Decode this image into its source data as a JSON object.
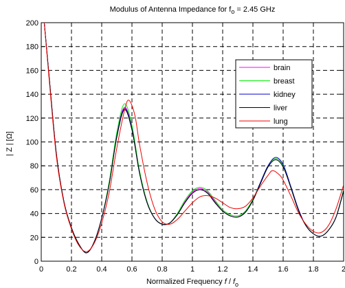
{
  "chart_data": {
    "type": "line",
    "title_main": "Modulus of Antenna Impedance for f",
    "title_sub": "o",
    "title_tail": " = 2.45 GHz",
    "xlabel_main": "Normalized Frequency ",
    "xlabel_f": "f",
    "xlabel_slash": " / ",
    "xlabel_f2": "f",
    "xlabel_sub": "o",
    "ylabel": "| Z | [Ω]",
    "xlim": [
      0,
      2
    ],
    "ylim": [
      0,
      200
    ],
    "x_ticks": [
      "0",
      "0.2",
      "0.4",
      "0.6",
      "0.8",
      "1",
      "1.2",
      "1.4",
      "1.6",
      "1.8",
      "2"
    ],
    "y_ticks": [
      "0",
      "20",
      "40",
      "60",
      "80",
      "100",
      "120",
      "140",
      "160",
      "180",
      "200"
    ],
    "grid": true,
    "legend_position": "top-right",
    "series": [
      {
        "name": "brain",
        "color": "#ff00ff",
        "points": [
          [
            0.02,
            200
          ],
          [
            0.05,
            158
          ],
          [
            0.1,
            90
          ],
          [
            0.15,
            50
          ],
          [
            0.2,
            28
          ],
          [
            0.25,
            14
          ],
          [
            0.3,
            7
          ],
          [
            0.35,
            16
          ],
          [
            0.4,
            36
          ],
          [
            0.45,
            66
          ],
          [
            0.5,
            106
          ],
          [
            0.55,
            129
          ],
          [
            0.6,
            112
          ],
          [
            0.65,
            75
          ],
          [
            0.7,
            50
          ],
          [
            0.75,
            36
          ],
          [
            0.8,
            31
          ],
          [
            0.85,
            32
          ],
          [
            0.9,
            40
          ],
          [
            0.95,
            50
          ],
          [
            1.0,
            58
          ],
          [
            1.05,
            61
          ],
          [
            1.1,
            58
          ],
          [
            1.15,
            50
          ],
          [
            1.2,
            43
          ],
          [
            1.25,
            39
          ],
          [
            1.3,
            38
          ],
          [
            1.35,
            42
          ],
          [
            1.4,
            52
          ],
          [
            1.45,
            66
          ],
          [
            1.5,
            80
          ],
          [
            1.55,
            86
          ],
          [
            1.6,
            80
          ],
          [
            1.65,
            62
          ],
          [
            1.7,
            43
          ],
          [
            1.75,
            30
          ],
          [
            1.8,
            23
          ],
          [
            1.85,
            21
          ],
          [
            1.9,
            26
          ],
          [
            1.95,
            37
          ],
          [
            2.0,
            60
          ]
        ]
      },
      {
        "name": "breast",
        "color": "#00ee00",
        "points": [
          [
            0.02,
            200
          ],
          [
            0.05,
            158
          ],
          [
            0.1,
            90
          ],
          [
            0.15,
            50
          ],
          [
            0.2,
            28
          ],
          [
            0.25,
            14
          ],
          [
            0.3,
            7
          ],
          [
            0.35,
            16
          ],
          [
            0.4,
            36
          ],
          [
            0.45,
            67
          ],
          [
            0.5,
            108
          ],
          [
            0.55,
            132
          ],
          [
            0.6,
            114
          ],
          [
            0.65,
            76
          ],
          [
            0.7,
            50
          ],
          [
            0.75,
            36
          ],
          [
            0.8,
            31
          ],
          [
            0.85,
            32
          ],
          [
            0.9,
            40
          ],
          [
            0.95,
            51
          ],
          [
            1.0,
            59
          ],
          [
            1.05,
            62
          ],
          [
            1.1,
            59
          ],
          [
            1.15,
            51
          ],
          [
            1.2,
            43
          ],
          [
            1.25,
            39
          ],
          [
            1.3,
            38
          ],
          [
            1.35,
            42
          ],
          [
            1.4,
            52
          ],
          [
            1.45,
            66
          ],
          [
            1.5,
            80
          ],
          [
            1.55,
            86
          ],
          [
            1.6,
            80
          ],
          [
            1.65,
            62
          ],
          [
            1.7,
            43
          ],
          [
            1.75,
            30
          ],
          [
            1.8,
            23
          ],
          [
            1.85,
            21
          ],
          [
            1.9,
            26
          ],
          [
            1.95,
            37
          ],
          [
            2.0,
            60
          ]
        ]
      },
      {
        "name": "kidney",
        "color": "#0000cc",
        "points": [
          [
            0.02,
            200
          ],
          [
            0.05,
            158
          ],
          [
            0.1,
            90
          ],
          [
            0.15,
            50
          ],
          [
            0.2,
            28
          ],
          [
            0.25,
            14
          ],
          [
            0.3,
            7
          ],
          [
            0.35,
            16
          ],
          [
            0.4,
            36
          ],
          [
            0.45,
            65
          ],
          [
            0.5,
            105
          ],
          [
            0.55,
            128
          ],
          [
            0.6,
            111
          ],
          [
            0.65,
            74
          ],
          [
            0.7,
            49
          ],
          [
            0.75,
            36
          ],
          [
            0.8,
            31
          ],
          [
            0.85,
            32
          ],
          [
            0.9,
            39
          ],
          [
            0.95,
            49
          ],
          [
            1.0,
            57
          ],
          [
            1.05,
            60
          ],
          [
            1.1,
            57
          ],
          [
            1.15,
            49
          ],
          [
            1.2,
            42
          ],
          [
            1.25,
            38
          ],
          [
            1.3,
            37
          ],
          [
            1.35,
            41
          ],
          [
            1.4,
            51
          ],
          [
            1.45,
            66
          ],
          [
            1.5,
            80
          ],
          [
            1.55,
            87
          ],
          [
            1.6,
            81
          ],
          [
            1.65,
            63
          ],
          [
            1.7,
            44
          ],
          [
            1.75,
            30
          ],
          [
            1.8,
            23
          ],
          [
            1.85,
            21
          ],
          [
            1.9,
            26
          ],
          [
            1.95,
            37
          ],
          [
            2.0,
            59
          ]
        ]
      },
      {
        "name": "liver",
        "color": "#000000",
        "points": [
          [
            0.02,
            200
          ],
          [
            0.05,
            158
          ],
          [
            0.1,
            90
          ],
          [
            0.15,
            50
          ],
          [
            0.2,
            28
          ],
          [
            0.25,
            14
          ],
          [
            0.3,
            7
          ],
          [
            0.35,
            16
          ],
          [
            0.4,
            36
          ],
          [
            0.45,
            65
          ],
          [
            0.5,
            104
          ],
          [
            0.55,
            127
          ],
          [
            0.6,
            110
          ],
          [
            0.65,
            74
          ],
          [
            0.7,
            49
          ],
          [
            0.75,
            36
          ],
          [
            0.8,
            31
          ],
          [
            0.85,
            32
          ],
          [
            0.9,
            39
          ],
          [
            0.95,
            49
          ],
          [
            1.0,
            57
          ],
          [
            1.05,
            60
          ],
          [
            1.1,
            57
          ],
          [
            1.15,
            49
          ],
          [
            1.2,
            42
          ],
          [
            1.25,
            38
          ],
          [
            1.3,
            37
          ],
          [
            1.35,
            41
          ],
          [
            1.4,
            51
          ],
          [
            1.45,
            65
          ],
          [
            1.5,
            79
          ],
          [
            1.55,
            85
          ],
          [
            1.6,
            79
          ],
          [
            1.65,
            62
          ],
          [
            1.7,
            43
          ],
          [
            1.75,
            30
          ],
          [
            1.8,
            23
          ],
          [
            1.85,
            21
          ],
          [
            1.9,
            26
          ],
          [
            1.95,
            37
          ],
          [
            2.0,
            59
          ]
        ]
      },
      {
        "name": "lung",
        "color": "#ee0000",
        "points": [
          [
            0.02,
            200
          ],
          [
            0.05,
            156
          ],
          [
            0.1,
            88
          ],
          [
            0.15,
            49
          ],
          [
            0.2,
            27
          ],
          [
            0.25,
            13
          ],
          [
            0.3,
            8
          ],
          [
            0.35,
            15
          ],
          [
            0.4,
            32
          ],
          [
            0.45,
            58
          ],
          [
            0.5,
            95
          ],
          [
            0.55,
            126
          ],
          [
            0.58,
            135
          ],
          [
            0.62,
            122
          ],
          [
            0.65,
            98
          ],
          [
            0.7,
            66
          ],
          [
            0.75,
            44
          ],
          [
            0.8,
            33
          ],
          [
            0.85,
            31
          ],
          [
            0.9,
            35
          ],
          [
            0.95,
            42
          ],
          [
            1.0,
            49
          ],
          [
            1.05,
            54
          ],
          [
            1.1,
            55
          ],
          [
            1.15,
            53
          ],
          [
            1.2,
            49
          ],
          [
            1.25,
            45
          ],
          [
            1.3,
            44
          ],
          [
            1.35,
            46
          ],
          [
            1.4,
            53
          ],
          [
            1.45,
            63
          ],
          [
            1.5,
            72
          ],
          [
            1.53,
            76
          ],
          [
            1.57,
            73
          ],
          [
            1.6,
            68
          ],
          [
            1.65,
            55
          ],
          [
            1.7,
            41
          ],
          [
            1.75,
            31
          ],
          [
            1.8,
            25
          ],
          [
            1.85,
            24
          ],
          [
            1.9,
            30
          ],
          [
            1.95,
            44
          ],
          [
            2.0,
            64
          ]
        ]
      }
    ]
  }
}
